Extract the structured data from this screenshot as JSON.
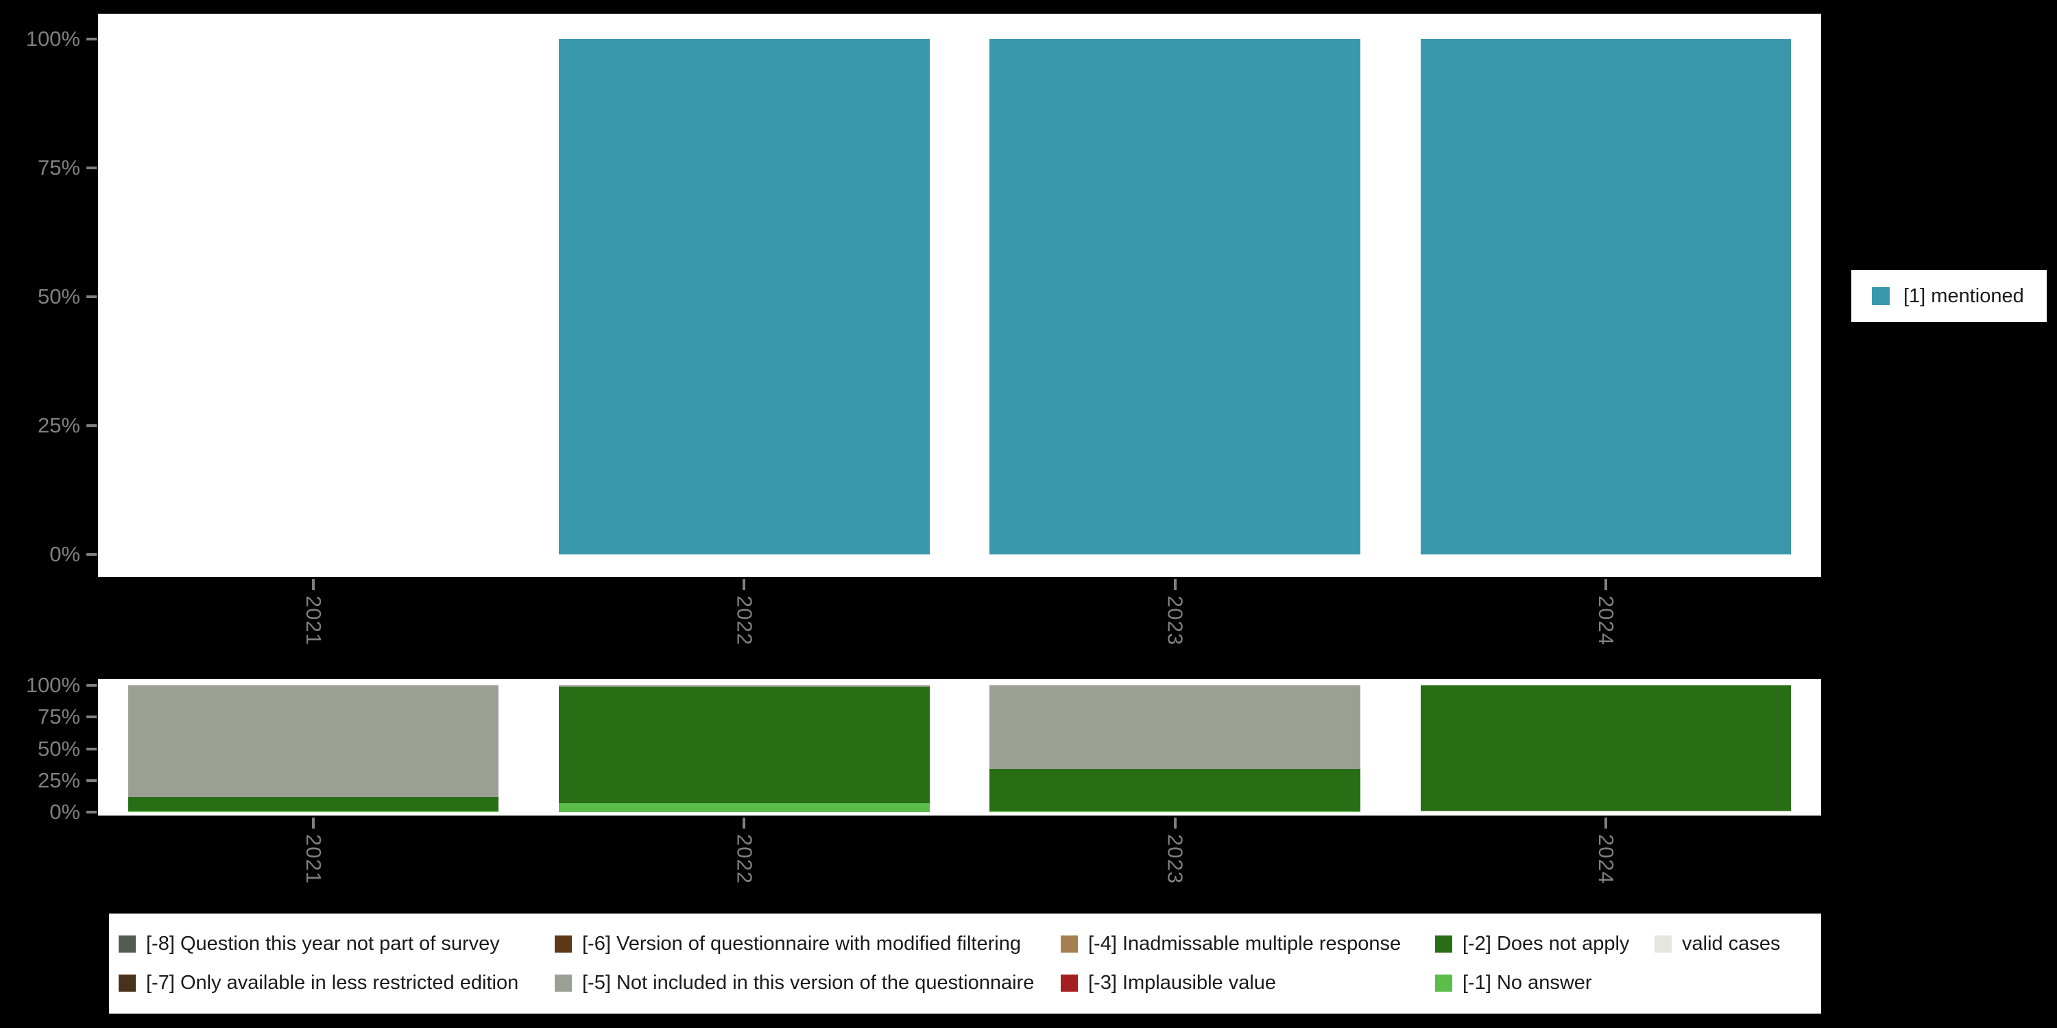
{
  "background": "#000000",
  "panel_color": "#ffffff",
  "axis_text_color": "#7f7f7f",
  "legend_text_color": "#1a1a1a",
  "top_chart": {
    "y_tick_labels": [
      "100%",
      "75%",
      "50%",
      "25%",
      "0%"
    ],
    "x_tick_labels": [
      "2021",
      "2022",
      "2023",
      "2024"
    ],
    "legend": {
      "label": "[1] mentioned",
      "color": "#3a98ad"
    }
  },
  "bottom_chart": {
    "y_tick_labels": [
      "100%",
      "75%",
      "50%",
      "25%",
      "0%"
    ],
    "x_tick_labels": [
      "2021",
      "2022",
      "2023",
      "2024"
    ]
  },
  "chart_data": [
    {
      "type": "bar",
      "title": "",
      "categories": [
        "2021",
        "2022",
        "2023",
        "2024"
      ],
      "series": [
        {
          "name": "[1] mentioned",
          "color": "#3a98ad",
          "values": [
            null,
            100,
            100,
            100
          ]
        }
      ],
      "xlabel": "",
      "ylabel": "",
      "ylim": [
        0,
        100
      ],
      "ytick_percent": [
        0,
        25,
        50,
        75,
        100
      ],
      "grid": false,
      "legend_position": "right",
      "note": "percentage of valid cases per survey year; no valid cases in 2021"
    },
    {
      "type": "bar",
      "stacked": true,
      "title": "",
      "categories": [
        "2021",
        "2022",
        "2023",
        "2024"
      ],
      "series": [
        {
          "name": "valid cases",
          "color": "#e3e7df",
          "values": [
            0,
            0,
            0,
            1
          ]
        },
        {
          "name": "[-1] No answer",
          "color": "#5cbd4b",
          "values": [
            1,
            7,
            1,
            0
          ]
        },
        {
          "name": "[-2] Does not apply",
          "color": "#276e14",
          "values": [
            11,
            92,
            33,
            99
          ]
        },
        {
          "name": "[-5] Not included in this version of the questionnaire",
          "color": "#9aa094",
          "values": [
            88,
            1,
            66,
            0
          ]
        }
      ],
      "xlabel": "",
      "ylabel": "",
      "ylim": [
        0,
        100
      ],
      "ytick_percent": [
        0,
        25,
        50,
        75,
        100
      ],
      "grid": false,
      "legend_position": "bottom",
      "note": "segments stacked bottom-to-top in listed order; missing-value shares per year"
    }
  ],
  "legend_bottom": {
    "items": [
      {
        "code": "-8",
        "label": "[-8] Question this year not part of survey",
        "color": "#545b53"
      },
      {
        "code": "-7",
        "label": "[-7] Only available in less restricted edition",
        "color": "#49311b"
      },
      {
        "code": "-6",
        "label": "[-6] Version of questionnaire with modified filtering",
        "color": "#5c3a17"
      },
      {
        "code": "-5",
        "label": "[-5] Not included in this version of the questionnaire",
        "color": "#9aa094"
      },
      {
        "code": "-4",
        "label": "[-4] Inadmissable multiple response",
        "color": "#a47f4f"
      },
      {
        "code": "-3",
        "label": "[-3] Implausible value",
        "color": "#a41f1f"
      },
      {
        "code": "-2",
        "label": "[-2] Does not apply",
        "color": "#276e14"
      },
      {
        "code": "-1",
        "label": "[-1] No answer",
        "color": "#5cbd4b"
      },
      {
        "code": "valid",
        "label": "valid cases",
        "color": "#e3e7df"
      }
    ]
  }
}
